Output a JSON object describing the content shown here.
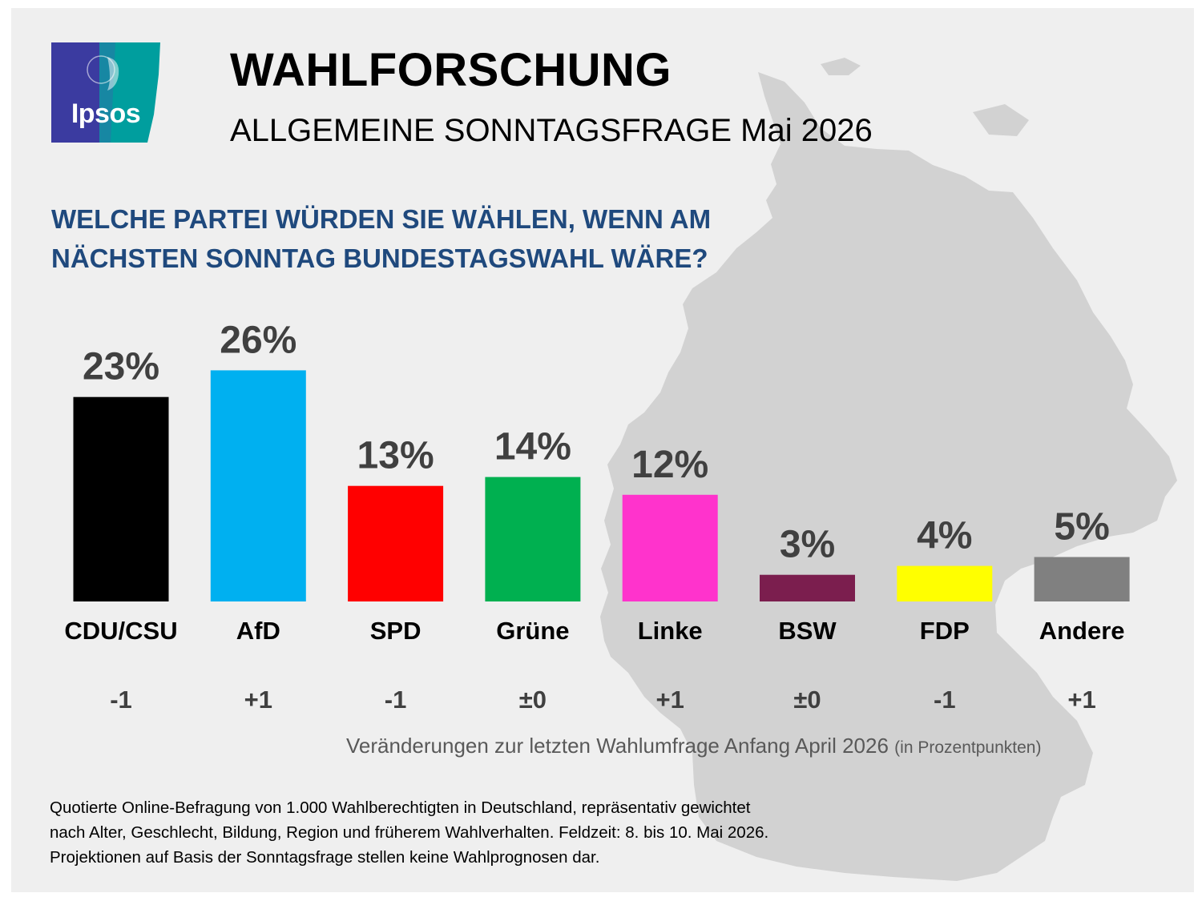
{
  "header": {
    "logo_text": "Ipsos",
    "title": "WAHLFORSCHUNG",
    "subtitle": "ALLGEMEINE SONNTAGSFRAGE Mai 2026",
    "question_line1": "WELCHE PARTEI WÜRDEN SIE WÄHLEN, WENN AM",
    "question_line2": "NÄCHSTEN SONNTAG BUNDESTAGSWAHL WÄRE?"
  },
  "chart_data": {
    "type": "bar",
    "categories": [
      "CDU/CSU",
      "AfD",
      "SPD",
      "Grüne",
      "Linke",
      "BSW",
      "FDP",
      "Andere"
    ],
    "values": [
      23,
      26,
      13,
      14,
      12,
      3,
      4,
      5
    ],
    "value_labels": [
      "23%",
      "26%",
      "13%",
      "14%",
      "12%",
      "3%",
      "4%",
      "5%"
    ],
    "changes": [
      "-1",
      "+1",
      "-1",
      "±0",
      "+1",
      "±0",
      "-1",
      "+1"
    ],
    "colors": [
      "#000000",
      "#00b0f0",
      "#ff0000",
      "#00b050",
      "#ff33cc",
      "#7b1e4e",
      "#ffff00",
      "#808080"
    ],
    "label_emphasis": [
      "large",
      "large",
      "medium",
      "medium",
      "medium",
      "medium",
      "medium",
      "medium"
    ],
    "unit": "%",
    "ylim": [
      0,
      26
    ]
  },
  "notes": {
    "change_note_main": "Veränderungen zur letzten Wahlumfrage Anfang April 2026",
    "change_note_unit": "(in Prozentpunkten)",
    "method_line1": "Quotierte Online-Befragung von 1.000 Wahlberechtigten in Deutschland, repräsentativ gewichtet",
    "method_line2": "nach Alter, Geschlecht, Bildung, Region und früherem Wahlverhalten. Feldzeit: 8. bis 10. Mai 2026.",
    "method_line3": "Projektionen auf Basis der Sonntagsfrage stellen keine Wahlprognosen dar."
  },
  "colors": {
    "background": "#efefef",
    "map": "#d0d0d0",
    "question": "#1f497d",
    "value_label": "#404040",
    "logo_left": "#3b3ba0",
    "logo_right": "#009e9e"
  }
}
